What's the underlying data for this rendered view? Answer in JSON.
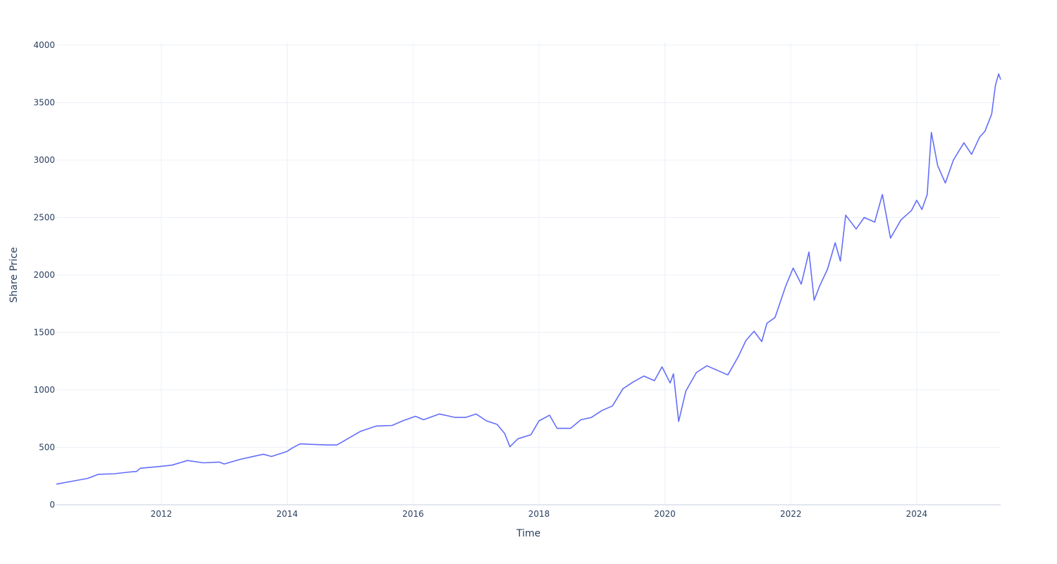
{
  "chart_data": {
    "type": "line",
    "title": "",
    "xlabel": "Time",
    "ylabel": "Share Price",
    "xlim": [
      "2010-05-01",
      "2025-05-01"
    ],
    "ylim": [
      0,
      4000
    ],
    "x_ticks": [
      "2012",
      "2014",
      "2016",
      "2018",
      "2020",
      "2022",
      "2024"
    ],
    "y_ticks": [
      0,
      500,
      1000,
      1500,
      2000,
      2500,
      3000,
      3500,
      4000
    ],
    "grid": true,
    "legend": "none",
    "line_color": "#636efa",
    "series": [
      {
        "x": [
          "2010-05-01",
          "2010-08-01",
          "2010-11-01",
          "2011-01-01",
          "2011-04-01",
          "2011-07-01",
          "2011-08-10",
          "2011-09-01",
          "2011-12-01",
          "2012-03-01",
          "2012-06-01",
          "2012-09-01",
          "2012-12-01",
          "2013-01-01",
          "2013-04-01",
          "2013-07-01",
          "2013-08-15",
          "2013-10-01",
          "2014-01-01",
          "2014-02-01",
          "2014-03-15",
          "2014-06-01",
          "2014-09-01",
          "2014-10-15",
          "2014-12-01",
          "2015-03-01",
          "2015-06-01",
          "2015-09-01",
          "2015-11-01",
          "2016-01-15",
          "2016-03-01",
          "2016-06-01",
          "2016-09-01",
          "2016-11-01",
          "2017-01-01",
          "2017-03-01",
          "2017-05-01",
          "2017-06-15",
          "2017-07-15",
          "2017-09-01",
          "2017-11-15",
          "2018-01-01",
          "2018-03-01",
          "2018-04-15",
          "2018-07-01",
          "2018-09-01",
          "2018-11-01",
          "2019-01-01",
          "2019-03-01",
          "2019-05-01",
          "2019-07-01",
          "2019-09-01",
          "2019-11-01",
          "2019-12-15",
          "2020-02-01",
          "2020-02-20",
          "2020-03-20",
          "2020-05-01",
          "2020-07-01",
          "2020-09-01",
          "2020-11-01",
          "2021-01-01",
          "2021-03-01",
          "2021-04-15",
          "2021-06-01",
          "2021-07-15",
          "2021-08-15",
          "2021-10-01",
          "2021-12-01",
          "2022-01-15",
          "2022-03-01",
          "2022-04-15",
          "2022-05-15",
          "2022-06-15",
          "2022-08-01",
          "2022-09-15",
          "2022-10-15",
          "2022-11-15",
          "2023-01-15",
          "2023-03-01",
          "2023-05-01",
          "2023-06-15",
          "2023-08-01",
          "2023-10-01",
          "2023-12-01",
          "2024-01-01",
          "2024-02-01",
          "2024-03-01",
          "2024-03-25",
          "2024-05-01",
          "2024-06-15",
          "2024-08-01",
          "2024-10-01",
          "2024-11-15",
          "2025-01-01",
          "2025-02-01",
          "2025-03-10",
          "2025-04-01",
          "2025-04-20",
          "2025-05-01"
        ],
        "y": [
          180,
          205,
          230,
          265,
          270,
          285,
          290,
          318,
          330,
          345,
          385,
          365,
          372,
          355,
          395,
          425,
          440,
          420,
          465,
          495,
          530,
          525,
          520,
          520,
          560,
          640,
          685,
          690,
          730,
          770,
          740,
          790,
          760,
          760,
          790,
          730,
          700,
          620,
          505,
          575,
          610,
          730,
          780,
          665,
          665,
          740,
          760,
          820,
          860,
          1010,
          1070,
          1120,
          1080,
          1200,
          1060,
          1140,
          725,
          990,
          1150,
          1210,
          1170,
          1130,
          1290,
          1430,
          1510,
          1420,
          1580,
          1630,
          1900,
          2060,
          1920,
          2200,
          1780,
          1900,
          2050,
          2280,
          2120,
          2520,
          2400,
          2500,
          2460,
          2700,
          2320,
          2480,
          2560,
          2650,
          2570,
          2700,
          3240,
          2950,
          2800,
          3000,
          3150,
          3050,
          3200,
          3250,
          3400,
          3650,
          3750,
          3700
        ]
      }
    ]
  }
}
